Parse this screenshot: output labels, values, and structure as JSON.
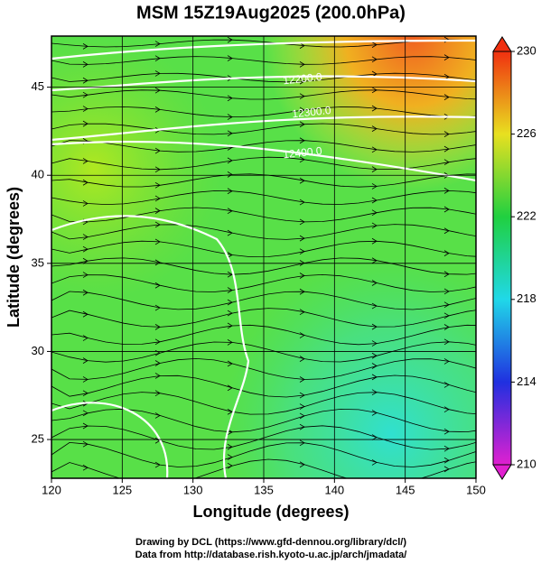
{
  "map": {
    "title": "MSM 15Z19Aug2025 (200.0hPa)",
    "xlabel": "Longitude (degrees)",
    "ylabel": "Latitude  (degrees)",
    "xlim": [
      120,
      150
    ],
    "xticks": [
      120,
      125,
      130,
      135,
      140,
      145,
      150
    ],
    "ylim": [
      22.8,
      47.9
    ],
    "yticks": [
      25,
      30,
      35,
      40,
      45
    ],
    "grid": true,
    "colorbar": {
      "range": [
        210,
        230
      ],
      "ticks": [
        210,
        214,
        218,
        222,
        226,
        230
      ],
      "colors": [
        "#e020d0",
        "#2030e0",
        "#20d8e8",
        "#20d040",
        "#e8e020",
        "#f03010"
      ]
    },
    "contour_labels": [
      "12200.0",
      "12300.0",
      "12400.0"
    ]
  },
  "footer": [
    "Drawing by DCL (https://www.gfd-dennou.org/library/dcl/)",
    "Data from http://database.rish.kyoto-u.ac.jp/arch/jmadata/"
  ]
}
